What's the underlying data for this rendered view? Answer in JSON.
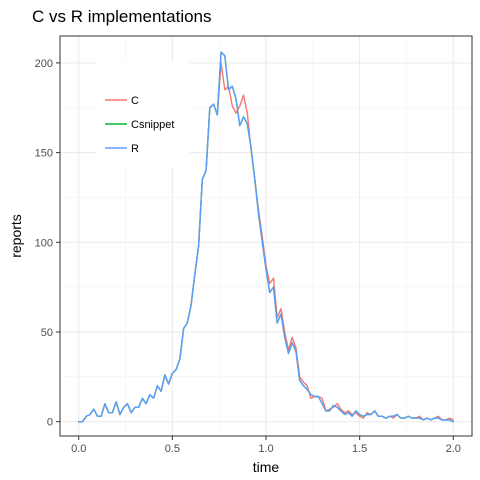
{
  "chart_data": {
    "type": "line",
    "title": "C vs R implementations",
    "xlabel": "time",
    "ylabel": "reports",
    "xlim": [
      -0.1,
      2.1
    ],
    "ylim": [
      -8,
      215
    ],
    "x_ticks": [
      0.0,
      0.5,
      1.0,
      1.5,
      2.0
    ],
    "x_tick_labels": [
      "0.0",
      "0.5",
      "1.0",
      "1.5",
      "2.0"
    ],
    "y_ticks": [
      0,
      50,
      100,
      150,
      200
    ],
    "y_tick_labels": [
      "0",
      "50",
      "100",
      "150",
      "200"
    ],
    "grid": true,
    "legend_position": "top-left, inside plot",
    "x": [
      0.0,
      0.02,
      0.04,
      0.06,
      0.08,
      0.1,
      0.12,
      0.14,
      0.16,
      0.18,
      0.2,
      0.22,
      0.24,
      0.26,
      0.28,
      0.3,
      0.32,
      0.34,
      0.36,
      0.38,
      0.4,
      0.42,
      0.44,
      0.46,
      0.48,
      0.5,
      0.52,
      0.54,
      0.56,
      0.58,
      0.6,
      0.62,
      0.64,
      0.66,
      0.68,
      0.7,
      0.72,
      0.74,
      0.76,
      0.78,
      0.8,
      0.82,
      0.84,
      0.86,
      0.88,
      0.9,
      0.92,
      0.94,
      0.96,
      0.98,
      1.0,
      1.02,
      1.04,
      1.06,
      1.08,
      1.1,
      1.12,
      1.14,
      1.16,
      1.18,
      1.2,
      1.22,
      1.24,
      1.26,
      1.28,
      1.3,
      1.32,
      1.34,
      1.36,
      1.38,
      1.4,
      1.42,
      1.44,
      1.46,
      1.48,
      1.5,
      1.52,
      1.54,
      1.56,
      1.58,
      1.6,
      1.62,
      1.64,
      1.66,
      1.68,
      1.7,
      1.72,
      1.74,
      1.76,
      1.78,
      1.8,
      1.82,
      1.84,
      1.86,
      1.88,
      1.9,
      1.92,
      1.94,
      1.96,
      1.98,
      2.0
    ],
    "series": [
      {
        "name": "C",
        "color": "#F8766D",
        "values": [
          0,
          0,
          3,
          4,
          7,
          3,
          3,
          10,
          5,
          5,
          11,
          4,
          8,
          10,
          5,
          8,
          8,
          13,
          10,
          15,
          13,
          20,
          17,
          26,
          21,
          27,
          29,
          35,
          52,
          55,
          65,
          82,
          98,
          135,
          140,
          175,
          177,
          171,
          200,
          185,
          187,
          176,
          172,
          176,
          182,
          172,
          152,
          135,
          118,
          103,
          87,
          77,
          80,
          58,
          63,
          50,
          40,
          47,
          41,
          25,
          22,
          20,
          13,
          14,
          14,
          13,
          6,
          7,
          8,
          10,
          7,
          5,
          6,
          4,
          5,
          3,
          2,
          5,
          4,
          6,
          3,
          3,
          2,
          3,
          2,
          4,
          2,
          2,
          3,
          2,
          2,
          3,
          1,
          2,
          1,
          2,
          3,
          1,
          1,
          2,
          1
        ],
        "marks": "line"
      },
      {
        "name": "Csnippet",
        "color": "#00BA38",
        "values": [
          0,
          0,
          3,
          4,
          7,
          3,
          3,
          10,
          5,
          5,
          11,
          4,
          8,
          10,
          5,
          8,
          8,
          13,
          10,
          15,
          13,
          20,
          17,
          26,
          21,
          27,
          29,
          35,
          52,
          55,
          65,
          82,
          98,
          135,
          140,
          175,
          177,
          171,
          206,
          204,
          185,
          187,
          180,
          165,
          170,
          166,
          153,
          135,
          116,
          100,
          85,
          72,
          75,
          55,
          60,
          47,
          38,
          44,
          39,
          23,
          20,
          18,
          15,
          14,
          14,
          10,
          6,
          6,
          9,
          8,
          6,
          4,
          5,
          3,
          6,
          4,
          3,
          4,
          4,
          6,
          3,
          3,
          2,
          3,
          3,
          4,
          2,
          2,
          3,
          2,
          2,
          2,
          1,
          2,
          1,
          2,
          2,
          1,
          1,
          1,
          0
        ],
        "marks": "line (hidden beneath R in the rendering)"
      },
      {
        "name": "R",
        "color": "#619CFF",
        "values": [
          0,
          0,
          3,
          4,
          7,
          3,
          3,
          10,
          5,
          5,
          11,
          4,
          8,
          10,
          5,
          8,
          8,
          13,
          10,
          15,
          13,
          20,
          17,
          26,
          21,
          27,
          29,
          35,
          52,
          55,
          65,
          82,
          98,
          135,
          140,
          175,
          177,
          171,
          206,
          204,
          185,
          187,
          180,
          165,
          170,
          166,
          153,
          135,
          116,
          100,
          85,
          72,
          75,
          55,
          60,
          47,
          38,
          44,
          39,
          23,
          20,
          18,
          15,
          14,
          14,
          10,
          6,
          6,
          9,
          8,
          6,
          4,
          5,
          3,
          6,
          4,
          3,
          4,
          4,
          6,
          3,
          3,
          2,
          3,
          3,
          4,
          2,
          2,
          3,
          2,
          2,
          2,
          1,
          2,
          1,
          2,
          2,
          1,
          1,
          1,
          0
        ],
        "marks": "line"
      }
    ]
  }
}
